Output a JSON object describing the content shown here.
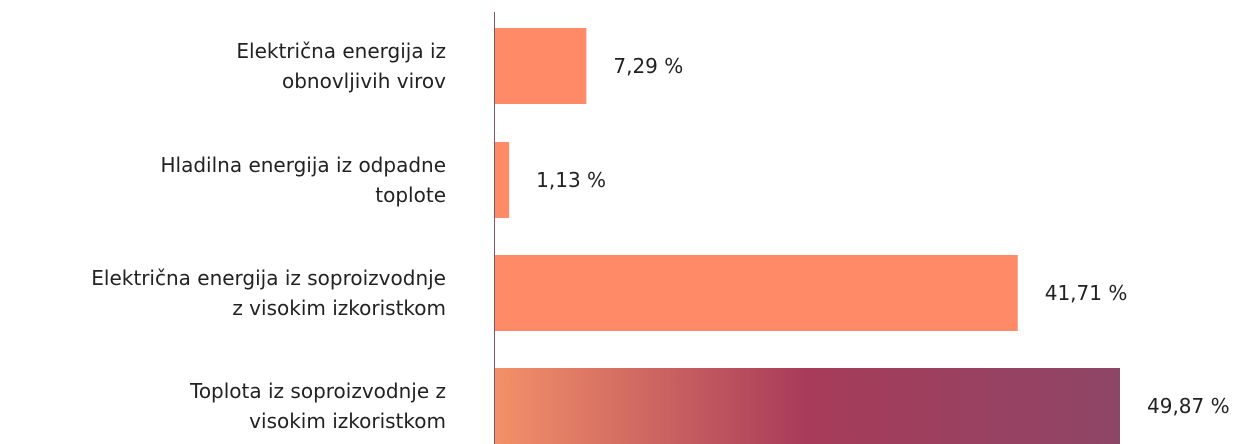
{
  "chart_data": {
    "type": "bar",
    "orientation": "horizontal",
    "categories": [
      "Električna energija iz\nobnovljivih virov",
      "Hladilna energija iz odpadne\ntoplote",
      "Električna energija iz soproizvodnje\nz visokim izkoristkom",
      "Toplota iz soproizvodnje z\nvisokim izkoristkom"
    ],
    "values": [
      7.29,
      1.13,
      41.71,
      49.87
    ],
    "value_labels": [
      "7,29 %",
      "1,13 %",
      "41,71 %",
      "49,87 %"
    ],
    "color": "#fe8a67",
    "last_bar_gradient": [
      "#f39169",
      "#a73b5a",
      "#8e4666"
    ]
  }
}
